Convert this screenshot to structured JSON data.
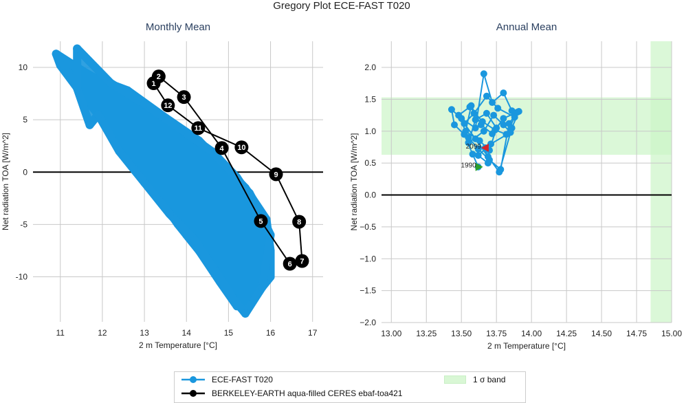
{
  "title": "Gregory Plot ECE-FAST T020",
  "chart_data": [
    {
      "type": "line",
      "title": "Monthly Mean",
      "xlabel": "2 m Temperature [°C]",
      "ylabel": "Net radiation TOA [W/m^2]",
      "xlim": [
        10.35,
        17.25
      ],
      "ylim": [
        -14.3,
        12.5
      ],
      "xticks": [
        11,
        12,
        13,
        14,
        15,
        16,
        17
      ],
      "yticks": [
        -10,
        -5,
        0,
        5,
        10
      ],
      "grid": true,
      "zero_line": 0,
      "series": [
        {
          "name": "ECE-FAST T020",
          "color": "#1a97de",
          "loops": [
            [
              [
                10.9,
                11.3
              ],
              [
                11.6,
                9.5
              ],
              [
                12.5,
                7.5
              ],
              [
                13.3,
                5.6
              ],
              [
                14.1,
                3.4
              ],
              [
                14.8,
                1.0
              ],
              [
                15.4,
                -1.5
              ],
              [
                15.9,
                -4.5
              ],
              [
                16.0,
                -7.5
              ],
              [
                16.0,
                -10.0
              ],
              [
                15.6,
                -12.0
              ],
              [
                15.3,
                -13.0
              ],
              [
                15.0,
                -11.5
              ],
              [
                14.6,
                -9.0
              ],
              [
                14.0,
                -6.0
              ],
              [
                13.5,
                -3.0
              ],
              [
                13.0,
                -0.5
              ],
              [
                12.5,
                2.5
              ],
              [
                12.0,
                5.0
              ],
              [
                11.5,
                7.5
              ],
              [
                11.0,
                10.2
              ],
              [
                10.9,
                11.3
              ]
            ],
            [
              [
                11.0,
                10.8
              ],
              [
                11.8,
                9.0
              ],
              [
                12.6,
                7.8
              ],
              [
                13.5,
                5.2
              ],
              [
                14.3,
                3.0
              ],
              [
                14.9,
                0.5
              ],
              [
                15.5,
                -2.0
              ],
              [
                15.9,
                -5.0
              ],
              [
                15.9,
                -9.0
              ],
              [
                15.5,
                -12.5
              ],
              [
                15.2,
                -12.8
              ],
              [
                14.8,
                -10.5
              ],
              [
                14.3,
                -7.5
              ],
              [
                13.8,
                -5.0
              ],
              [
                13.2,
                -1.5
              ],
              [
                12.6,
                1.5
              ],
              [
                12.1,
                4.5
              ],
              [
                11.6,
                7.5
              ],
              [
                11.2,
                9.5
              ],
              [
                11.0,
                10.8
              ]
            ],
            [
              [
                11.4,
                11.8
              ],
              [
                12.2,
                8.5
              ],
              [
                13.0,
                6.5
              ],
              [
                13.9,
                4.0
              ],
              [
                14.6,
                2.0
              ],
              [
                15.2,
                -0.5
              ],
              [
                15.7,
                -3.5
              ],
              [
                16.0,
                -6.0
              ],
              [
                15.8,
                -11.0
              ],
              [
                15.4,
                -13.5
              ],
              [
                15.1,
                -12.0
              ],
              [
                14.7,
                -9.5
              ],
              [
                14.2,
                -6.5
              ],
              [
                13.6,
                -4.0
              ],
              [
                13.0,
                -1.0
              ],
              [
                12.4,
                2.0
              ],
              [
                11.9,
                5.5
              ],
              [
                11.7,
                4.5
              ],
              [
                11.4,
                8.0
              ],
              [
                11.4,
                11.8
              ]
            ]
          ]
        },
        {
          "name": "BERKELEY-EARTH aqua-filled CERES ebaf-toa421",
          "color": "#000000",
          "labels": [
            "1",
            "2",
            "3",
            "4",
            "5",
            "6",
            "7",
            "8",
            "9",
            "10",
            "11",
            "12"
          ],
          "x": [
            13.22,
            13.34,
            13.94,
            14.84,
            15.77,
            16.46,
            16.75,
            16.68,
            16.13,
            15.31,
            14.28,
            13.56
          ],
          "y": [
            8.49,
            9.14,
            7.17,
            2.3,
            -4.67,
            -8.75,
            -8.49,
            -4.74,
            -0.2,
            2.37,
            4.21,
            6.38
          ]
        }
      ]
    },
    {
      "type": "line",
      "title": "Annual Mean",
      "xlabel": "2 m Temperature [°C]",
      "ylabel": "Net radiation TOA [W/m^2]",
      "xlim": [
        12.93,
        15.0
      ],
      "ylim": [
        -2.0,
        2.41
      ],
      "xticks": [
        13.0,
        13.25,
        13.5,
        13.75,
        14.0,
        14.25,
        14.5,
        14.75,
        15.0
      ],
      "xtick_labels": [
        "13.00",
        "13.25",
        "13.50",
        "13.75",
        "14.00",
        "14.25",
        "14.50",
        "14.75",
        "15.00"
      ],
      "yticks": [
        -2.0,
        -1.5,
        -1.0,
        -0.5,
        0.0,
        0.5,
        1.0,
        1.5,
        2.0
      ],
      "ytick_labels": [
        "−2.0",
        "−1.5",
        "−1.0",
        "−0.5",
        "0.0",
        "0.5",
        "1.0",
        "1.5",
        "2.0"
      ],
      "grid": true,
      "zero_line": 0,
      "sigma_band": {
        "label": "1 σ band",
        "color": "#ccf5c8",
        "y": [
          0.63,
          1.53
        ],
        "x": [
          14.85,
          15.0
        ]
      },
      "series": [
        {
          "name": "ECE-FAST T020",
          "color": "#1a97de",
          "x": [
            13.62,
            13.58,
            13.52,
            13.45,
            13.43,
            13.5,
            13.6,
            13.66,
            13.72,
            13.8,
            13.86,
            13.9,
            13.84,
            13.78,
            13.7,
            13.62,
            13.55,
            13.48,
            13.56,
            13.65,
            13.74,
            13.82,
            13.88,
            13.76,
            13.68,
            13.59,
            13.52,
            13.6,
            13.69,
            13.77,
            13.86,
            13.91,
            13.8,
            13.72,
            13.64,
            13.57,
            13.53,
            13.63,
            13.7,
            13.75,
            13.68,
            13.6,
            13.55,
            13.66,
            13.73,
            13.8,
            13.85,
            13.71,
            13.62,
            13.69,
            13.67
          ],
          "y": [
            0.44,
            0.64,
            0.95,
            1.1,
            1.34,
            1.2,
            1.05,
            1.9,
            1.45,
            1.6,
            1.32,
            1.3,
            1.12,
            0.4,
            0.55,
            0.72,
            0.9,
            1.25,
            1.38,
            1.15,
            1.02,
            0.95,
            1.22,
            1.36,
            1.55,
            1.28,
            1.12,
            0.88,
            0.6,
            0.36,
            1.05,
            1.31,
            1.2,
            0.96,
            1.1,
            1.4,
            1.0,
            0.85,
            0.7,
            1.05,
            1.28,
            1.18,
            0.82,
            1.0,
            1.25,
            1.1,
            0.98,
            0.8,
            0.62,
            0.5,
            0.74
          ],
          "start": {
            "label": "1990",
            "x": 13.62,
            "y": 0.44,
            "color": "#2ca02c"
          },
          "end": {
            "label": "2099",
            "x": 13.67,
            "y": 0.74,
            "color": "#d62728"
          }
        }
      ]
    }
  ],
  "legend": {
    "items": [
      {
        "label": "ECE-FAST T020",
        "color": "#1a97de"
      },
      {
        "label": "BERKELEY-EARTH aqua-filled CERES ebaf-toa421",
        "color": "#000000"
      },
      {
        "label": "1 σ band",
        "color": "#ccf5c8"
      }
    ]
  }
}
